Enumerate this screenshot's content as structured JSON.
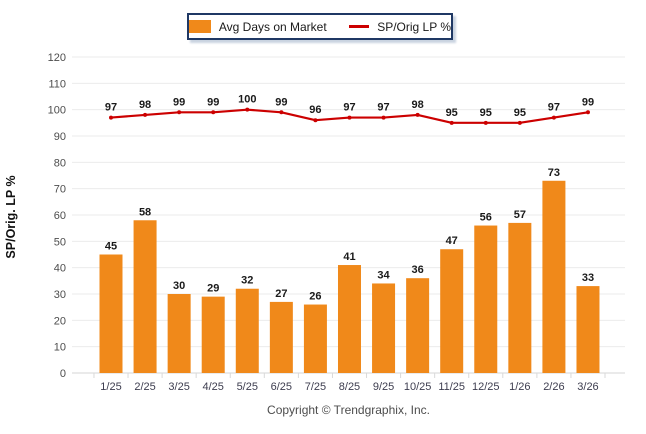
{
  "legend": {
    "bar_label": "Avg Days on Market",
    "line_label": "SP/Orig LP %"
  },
  "y_axis_title": "SP/Orig. LP %",
  "footer": {
    "copyright": "Copyright © Trendgraphix, Inc."
  },
  "colors": {
    "bar": "#F0891A",
    "line": "#CC0000",
    "grid": "#EBEBEB",
    "axis_line": "#D6D6D6",
    "tick_mark": "#D9D9D9",
    "y_tick_label": "#4D4D4D",
    "x_tick_label": "#3D3D4F",
    "data_label": "#1A1A1A",
    "legend_border": "#1F3864"
  },
  "chart_data": {
    "type": "bar+line combo",
    "categories": [
      "1/25",
      "2/25",
      "3/25",
      "4/25",
      "5/25",
      "6/25",
      "7/25",
      "8/25",
      "9/25",
      "10/25",
      "11/25",
      "12/25",
      "1/26",
      "2/26",
      "3/26"
    ],
    "series": [
      {
        "name": "Avg Days on Market",
        "type": "bar",
        "values": [
          45,
          58,
          30,
          29,
          32,
          27,
          26,
          41,
          34,
          36,
          47,
          56,
          57,
          73,
          33
        ]
      },
      {
        "name": "SP/Orig LP %",
        "type": "line",
        "values": [
          97,
          98,
          99,
          99,
          100,
          99,
          96,
          97,
          97,
          98,
          95,
          95,
          95,
          97,
          99
        ]
      }
    ],
    "title": "",
    "xlabel": "",
    "ylabel": "SP/Orig. LP %",
    "ylim": [
      0,
      120
    ],
    "ytick_step": 10,
    "grid": "horizontal",
    "legend_position": "top-center",
    "data_labels": true
  }
}
